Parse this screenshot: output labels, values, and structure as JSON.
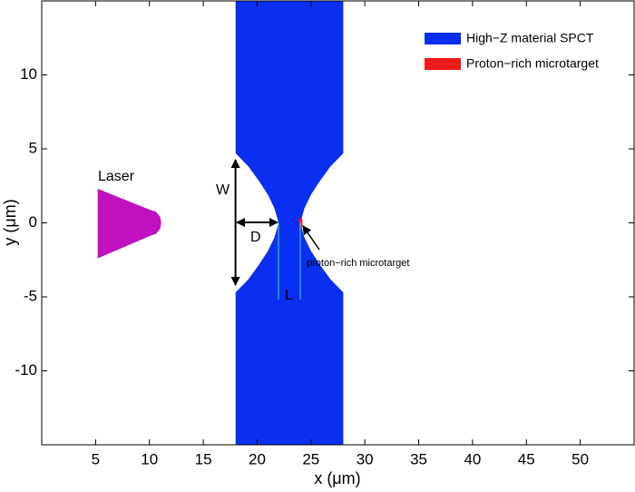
{
  "chart_data": {
    "type": "polygon",
    "xlabel": "x (μm)",
    "ylabel": "y (μm)",
    "xlim": [
      0,
      55
    ],
    "ylim": [
      -15,
      15
    ],
    "xticks": [
      5,
      10,
      15,
      20,
      25,
      30,
      35,
      40,
      45,
      50
    ],
    "yticks": [
      -10,
      -5,
      0,
      5,
      10
    ],
    "series": [
      {
        "name": "High−Z material SPCT",
        "color": "#0a2ff0",
        "x": [
          18,
          28,
          28,
          26.8,
          25.8,
          25,
          24.4,
          24,
          24.4,
          25,
          25.8,
          26.8,
          28,
          28,
          18,
          18,
          19.2,
          20.2,
          21,
          21.6,
          22,
          21.6,
          21,
          20.2,
          19.2,
          18
        ],
        "y": [
          15,
          15,
          4.7,
          3.8,
          2.8,
          1.9,
          1,
          0,
          -1,
          -1.9,
          -2.8,
          -3.8,
          -4.7,
          -15,
          -15,
          -4.7,
          -3.8,
          -2.8,
          -1.9,
          -1,
          0,
          1,
          1.9,
          2.8,
          3.8,
          4.7
        ]
      },
      {
        "name": "Proton−rich microtarget",
        "color": "#f01a1a",
        "x": [
          23.9,
          24.2,
          24.2,
          23.9
        ],
        "y": [
          0.3,
          0.3,
          -0.3,
          -0.3
        ]
      }
    ],
    "laser": {
      "label": "Laser",
      "color": "#c010c0",
      "x": [
        5.2,
        10,
        10.6,
        11,
        11.1,
        11,
        10.6,
        10,
        5.2
      ],
      "y": [
        2.3,
        0.9,
        0.75,
        0.4,
        0,
        -0.4,
        -0.75,
        -0.9,
        -2.4
      ]
    },
    "annotations": [
      "W",
      "D",
      "L",
      "proton−rich microtarget"
    ]
  }
}
